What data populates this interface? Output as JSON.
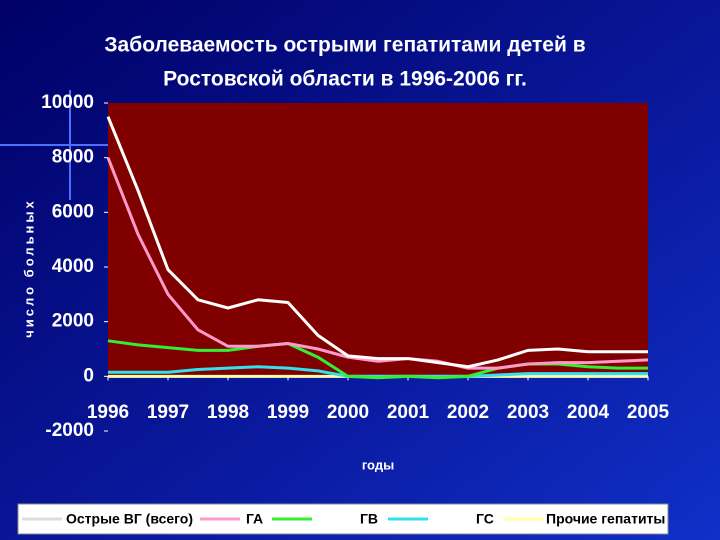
{
  "chart_data": {
    "type": "line",
    "title": [
      "Заболеваемость острыми гепатитами детей в",
      "Ростовской области в 1996-2006 гг."
    ],
    "y_label": "число больных",
    "x_label": "годы",
    "x": [
      1996,
      1996.5,
      1997,
      1997.5,
      1998,
      1998.5,
      1999,
      1999.5,
      2000,
      2000.5,
      2001,
      2001.5,
      2002,
      2002.5,
      2003,
      2003.5,
      2004,
      2004.5,
      2005
    ],
    "series": [
      {
        "name": "Острые ВГ (всего)",
        "color": "#ffffff",
        "values": [
          9500,
          6800,
          3900,
          2800,
          2500,
          2800,
          2700,
          1500,
          750,
          650,
          650,
          500,
          350,
          600,
          950,
          1000,
          900,
          900,
          900
        ]
      },
      {
        "name": "ГА",
        "color": "#ff99cc",
        "values": [
          8000,
          5200,
          3000,
          1700,
          1100,
          1100,
          1200,
          1000,
          700,
          550,
          650,
          550,
          300,
          300,
          450,
          500,
          500,
          550,
          600
        ]
      },
      {
        "name": "ГВ",
        "color": "#33ee33",
        "values": [
          1300,
          1150,
          1050,
          950,
          950,
          1100,
          1200,
          700,
          0,
          -50,
          0,
          -50,
          0,
          300,
          450,
          450,
          350,
          300,
          300
        ]
      },
      {
        "name": "ГС",
        "color": "#33e0ee",
        "values": [
          150,
          150,
          150,
          250,
          300,
          350,
          300,
          200,
          0,
          0,
          0,
          0,
          0,
          50,
          100,
          100,
          100,
          100,
          100
        ]
      },
      {
        "name": "Прочие гепатиты",
        "color": "#ffffaa",
        "values": [
          0,
          0,
          0,
          0,
          0,
          0,
          0,
          0,
          0,
          0,
          0,
          0,
          0,
          0,
          0,
          0,
          0,
          0,
          0
        ]
      }
    ],
    "xlim": [
      1996,
      2005
    ],
    "xticks": [
      1996,
      1997,
      1998,
      1999,
      2000,
      2001,
      2002,
      2003,
      2004,
      2005
    ],
    "ylim": [
      -2000,
      10000
    ],
    "yticks": [
      -2000,
      0,
      2000,
      4000,
      6000,
      8000,
      10000
    ],
    "plot_color": "#800000"
  }
}
